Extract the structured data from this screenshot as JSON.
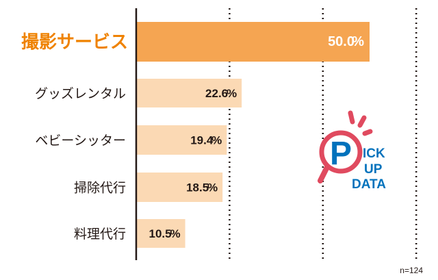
{
  "chart_data": {
    "type": "bar",
    "orientation": "horizontal",
    "categories": [
      "撮影サービス",
      "グッズレンタル",
      "ベビーシッター",
      "掃除代行",
      "料理代行"
    ],
    "values": [
      50.0,
      22.6,
      19.4,
      18.5,
      10.5
    ],
    "value_labels": [
      "50.0",
      "22.6",
      "19.4",
      "18.5",
      "10.5"
    ],
    "unit": "%",
    "highlight_index": 0,
    "xlim": [
      0,
      60
    ],
    "gridlines": [
      20,
      40,
      60
    ],
    "grid": "dotted vertical",
    "note": "n=124",
    "colors": {
      "highlight_bar": "#f5a552",
      "highlight_label": "#ef8200",
      "bar": "#fbd9b4",
      "text": "#231815"
    }
  },
  "badge": {
    "line1": "ICK",
    "line2": "UP",
    "line3": "DATA",
    "letter": "P",
    "red": "#e04a5f",
    "blue": "#0072bc"
  }
}
